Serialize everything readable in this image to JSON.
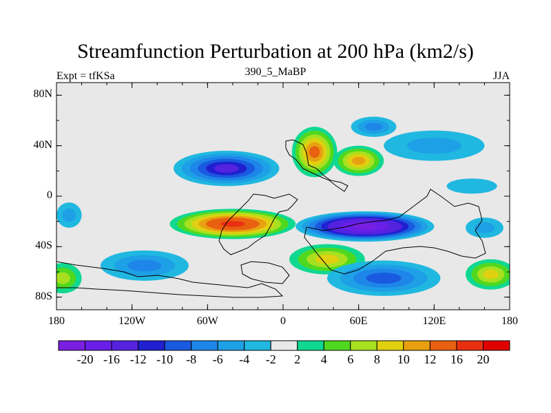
{
  "chart_data": {
    "type": "heatmap",
    "title": "Streamfunction Perturbation at 200 hPa (km2/s)",
    "left_label": "Expt = tfKSa",
    "center_label": "390_5_MaBP",
    "right_label": "JJA",
    "x_range": [
      -180,
      180
    ],
    "y_range": [
      -90,
      90
    ],
    "x_ticks": [
      {
        "value": -180,
        "label": "180"
      },
      {
        "value": -120,
        "label": "120W"
      },
      {
        "value": -60,
        "label": "60W"
      },
      {
        "value": 0,
        "label": "0"
      },
      {
        "value": 60,
        "label": "60E"
      },
      {
        "value": 120,
        "label": "120E"
      },
      {
        "value": 180,
        "label": "180"
      }
    ],
    "y_ticks": [
      {
        "value": 80,
        "label": "80N"
      },
      {
        "value": 40,
        "label": "40N"
      },
      {
        "value": 0,
        "label": "0"
      },
      {
        "value": -40,
        "label": "40S"
      },
      {
        "value": -80,
        "label": "80S"
      }
    ],
    "colorbar": {
      "levels": [
        -20,
        -16,
        -12,
        -10,
        -8,
        -6,
        -4,
        -2,
        2,
        4,
        6,
        8,
        10,
        12,
        16,
        20
      ],
      "labels": [
        "-20",
        "-16",
        "-12",
        "-10",
        "-8",
        "-6",
        "-4",
        "-2",
        "2",
        "4",
        "6",
        "8",
        "10",
        "12",
        "16",
        "20"
      ],
      "colors": [
        "#7a1fe0",
        "#6a1fe8",
        "#5522e0",
        "#2020d0",
        "#1a5ae0",
        "#1e86e8",
        "#1ea0e6",
        "#20b8e0",
        "#e8e8e8",
        "#10d890",
        "#50d820",
        "#a8e020",
        "#e0d010",
        "#e8a010",
        "#e86010",
        "#e83010",
        "#e00000"
      ]
    },
    "anomalies": [
      {
        "lon": -45,
        "lat": 22,
        "value": -12,
        "rx": 42,
        "ry": 14
      },
      {
        "lon": -40,
        "lat": -22,
        "value": 16,
        "rx": 50,
        "ry": 12
      },
      {
        "lon": 65,
        "lat": -24,
        "value": -20,
        "rx": 55,
        "ry": 12
      },
      {
        "lon": 25,
        "lat": 35,
        "value": 12,
        "rx": 18,
        "ry": 20
      },
      {
        "lon": 60,
        "lat": 28,
        "value": 10,
        "rx": 20,
        "ry": 12
      },
      {
        "lon": 72,
        "lat": 55,
        "value": -6,
        "rx": 18,
        "ry": 8
      },
      {
        "lon": 120,
        "lat": 40,
        "value": -4,
        "rx": 40,
        "ry": 12
      },
      {
        "lon": 150,
        "lat": 8,
        "value": -2,
        "rx": 20,
        "ry": 6
      },
      {
        "lon": -170,
        "lat": -15,
        "value": -4,
        "rx": 10,
        "ry": 10
      },
      {
        "lon": -110,
        "lat": -55,
        "value": -6,
        "rx": 35,
        "ry": 12
      },
      {
        "lon": 35,
        "lat": -50,
        "value": 8,
        "rx": 30,
        "ry": 12
      },
      {
        "lon": 80,
        "lat": -65,
        "value": -8,
        "rx": 45,
        "ry": 14
      },
      {
        "lon": 165,
        "lat": -62,
        "value": 8,
        "rx": 20,
        "ry": 12
      },
      {
        "lon": -175,
        "lat": -65,
        "value": 6,
        "rx": 15,
        "ry": 12
      },
      {
        "lon": 160,
        "lat": -25,
        "value": -4,
        "rx": 15,
        "ry": 8
      }
    ]
  }
}
